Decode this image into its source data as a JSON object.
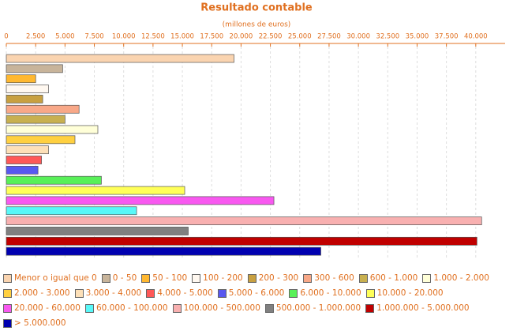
{
  "chart_data": {
    "type": "bar",
    "orientation": "horizontal",
    "title": "Resultado contable",
    "subtitle": "(millones de euros)",
    "categories": [
      "Menor o igual que 0",
      "0 - 50",
      "50 - 100",
      "100 - 200",
      "200 - 300",
      "300 - 600",
      "600 - 1.000",
      "1.000 - 2.000",
      "2.000 - 3.000",
      "3.000 - 4.000",
      "4.000 - 5.000",
      "5.000 - 6.000",
      "6.000 - 10.000",
      "10.000 - 20.000",
      "20.000 - 60.000",
      "60.000 - 100.000",
      "100.000 - 500.000",
      "500.000 - 1.000.000",
      "1.000.000 - 5.000.000",
      "> 5.000.000"
    ],
    "values": [
      19400,
      4800,
      2500,
      3600,
      3100,
      6200,
      5000,
      7800,
      5850,
      3600,
      3000,
      2700,
      8100,
      15200,
      22800,
      11100,
      40500,
      15500,
      40100,
      26800
    ],
    "colors": [
      "#fad4b0",
      "#c8b49a",
      "#ffb830",
      "#fff8f0",
      "#c8a040",
      "#f8a888",
      "#c8b050",
      "#ffffd8",
      "#ffd040",
      "#fde0b8",
      "#ff5858",
      "#5858f0",
      "#58f058",
      "#ffff58",
      "#f858f0",
      "#58f8f8",
      "#f8b0b0",
      "#808080",
      "#c00000",
      "#0000b0"
    ],
    "xlim": [
      0,
      42500
    ],
    "xticks": [
      0,
      {
        "value": 2500,
        "label": "2.500"
      },
      {
        "value": 5000,
        "label": "5.000"
      },
      {
        "value": 7500,
        "label": "7.500"
      },
      {
        "value": 10000,
        "label": "10.000"
      },
      {
        "value": 12500,
        "label": "12.500"
      },
      {
        "value": 15000,
        "label": "15.000"
      },
      {
        "value": 17500,
        "label": "17.500"
      },
      {
        "value": 20000,
        "label": "20.000"
      },
      {
        "value": 22500,
        "label": "22.500"
      },
      {
        "value": 25000,
        "label": "25.000"
      },
      {
        "value": 27500,
        "label": "27.500"
      },
      {
        "value": 30000,
        "label": "30.000"
      },
      {
        "value": 32500,
        "label": "32.500"
      },
      {
        "value": 35000,
        "label": "35.000"
      },
      {
        "value": 37500,
        "label": "37.500"
      },
      {
        "value": 40000,
        "label": "40.000"
      }
    ],
    "axis_position": "top",
    "grid": true,
    "legend_position": "bottom"
  }
}
